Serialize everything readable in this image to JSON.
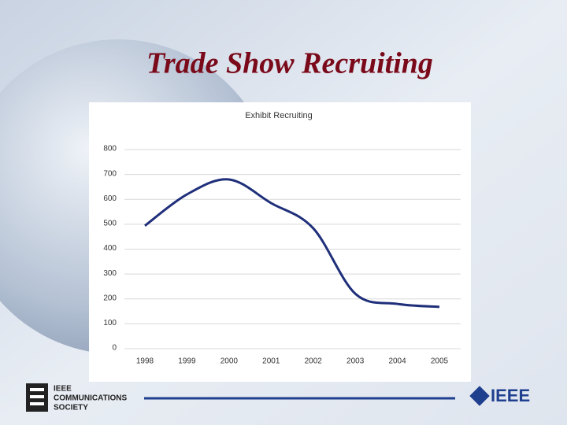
{
  "slide": {
    "title": "Trade Show Recruiting"
  },
  "chart_data": {
    "type": "line",
    "title": "Exhibit Recruiting",
    "categories": [
      "1998",
      "1999",
      "2000",
      "2001",
      "2002",
      "2003",
      "2004",
      "2005"
    ],
    "values": [
      494,
      620,
      680,
      585,
      484,
      221,
      180,
      168
    ],
    "color": "#1f2f7a",
    "ylim": [
      0,
      800
    ],
    "yticks": [
      0,
      100,
      200,
      300,
      400,
      500,
      600,
      700,
      800
    ],
    "grid": true
  },
  "footer": {
    "society": [
      "IEEE",
      "COMMUNICATIONS",
      "SOCIETY"
    ],
    "logo": "IEEE"
  }
}
